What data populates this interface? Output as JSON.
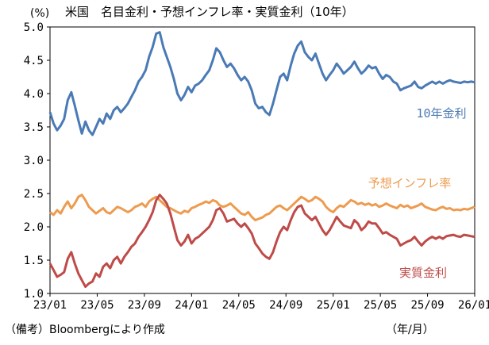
{
  "title": "米国　名目金利・予想インフレ率・実質金利（10年）",
  "unit_label": "(%)",
  "source_note": "（備考）Bloombergにより作成",
  "x_unit_label": "（年/月）",
  "chart_data": {
    "type": "line",
    "title": "米国　名目金利・予想インフレ率・実質金利（10年）",
    "ylabel": "(%)",
    "xlabel": "（年/月）",
    "ylim": [
      1.0,
      5.0
    ],
    "yticks": [
      "1.0",
      "1.5",
      "2.0",
      "2.5",
      "3.0",
      "3.5",
      "4.0",
      "4.5",
      "5.0"
    ],
    "xticks": [
      "23/01",
      "23/05",
      "23/09",
      "24/01",
      "24/05",
      "24/09",
      "25/01",
      "25/05",
      "25/09",
      "26/01"
    ],
    "x_range_months": [
      0,
      36
    ],
    "grid": false,
    "series": [
      {
        "name": "10年金利",
        "color": "#4a7ab5",
        "x": [
          0,
          0.3,
          0.6,
          0.9,
          1.2,
          1.5,
          1.8,
          2.1,
          2.4,
          2.7,
          3.0,
          3.3,
          3.6,
          3.9,
          4.2,
          4.5,
          4.8,
          5.1,
          5.4,
          5.7,
          6.0,
          6.3,
          6.6,
          6.9,
          7.2,
          7.5,
          7.8,
          8.1,
          8.4,
          8.7,
          9.0,
          9.3,
          9.6,
          9.9,
          10.2,
          10.5,
          10.8,
          11.1,
          11.4,
          11.7,
          12.0,
          12.3,
          12.6,
          12.9,
          13.2,
          13.5,
          13.8,
          14.1,
          14.4,
          14.7,
          15.0,
          15.3,
          15.6,
          15.9,
          16.2,
          16.5,
          16.8,
          17.1,
          17.4,
          17.7,
          18.0,
          18.3,
          18.6,
          18.9,
          19.2,
          19.5,
          19.8,
          20.1,
          20.4,
          20.7,
          21.0,
          21.3,
          21.6,
          21.9,
          22.2,
          22.5,
          22.8,
          23.1,
          23.4,
          23.7,
          24.0,
          24.3,
          24.6,
          24.9,
          25.2,
          25.5,
          25.8,
          26.1,
          26.4,
          26.7,
          27.0,
          27.3,
          27.6,
          27.9,
          28.2,
          28.5,
          28.8,
          29.1,
          29.4,
          29.7,
          30.0,
          30.3,
          30.6,
          30.9,
          31.2,
          31.5,
          31.8,
          32.1,
          32.4,
          32.7,
          33.0,
          33.3,
          33.6,
          33.9,
          34.2,
          34.5,
          34.8,
          35.1,
          35.4,
          35.7,
          36.0
        ],
        "values": [
          3.72,
          3.55,
          3.45,
          3.52,
          3.62,
          3.9,
          4.02,
          3.82,
          3.6,
          3.4,
          3.58,
          3.45,
          3.38,
          3.5,
          3.62,
          3.55,
          3.7,
          3.62,
          3.75,
          3.8,
          3.72,
          3.78,
          3.85,
          3.95,
          4.05,
          4.18,
          4.25,
          4.35,
          4.55,
          4.7,
          4.9,
          4.92,
          4.7,
          4.55,
          4.4,
          4.22,
          4.0,
          3.9,
          3.98,
          4.1,
          4.02,
          4.12,
          4.15,
          4.2,
          4.28,
          4.35,
          4.5,
          4.68,
          4.62,
          4.5,
          4.4,
          4.45,
          4.38,
          4.28,
          4.2,
          4.25,
          4.18,
          4.05,
          3.85,
          3.78,
          3.8,
          3.72,
          3.68,
          3.85,
          4.05,
          4.25,
          4.3,
          4.2,
          4.42,
          4.6,
          4.72,
          4.78,
          4.62,
          4.55,
          4.5,
          4.6,
          4.45,
          4.3,
          4.2,
          4.28,
          4.35,
          4.45,
          4.38,
          4.3,
          4.35,
          4.4,
          4.48,
          4.38,
          4.3,
          4.35,
          4.42,
          4.38,
          4.4,
          4.3,
          4.22,
          4.28,
          4.25,
          4.18,
          4.15,
          4.05,
          4.08,
          4.1,
          4.12,
          4.18,
          4.1,
          4.08,
          4.12,
          4.15,
          4.18,
          4.15,
          4.18,
          4.15,
          4.18,
          4.2,
          4.18,
          4.17,
          4.16,
          4.18,
          4.17,
          4.18,
          4.17
        ]
      },
      {
        "name": "予想インフレ率",
        "color": "#ed9b4f",
        "x": [
          0,
          0.3,
          0.6,
          0.9,
          1.2,
          1.5,
          1.8,
          2.1,
          2.4,
          2.7,
          3.0,
          3.3,
          3.6,
          3.9,
          4.2,
          4.5,
          4.8,
          5.1,
          5.4,
          5.7,
          6.0,
          6.3,
          6.6,
          6.9,
          7.2,
          7.5,
          7.8,
          8.1,
          8.4,
          8.7,
          9.0,
          9.3,
          9.6,
          9.9,
          10.2,
          10.5,
          10.8,
          11.1,
          11.4,
          11.7,
          12.0,
          12.3,
          12.6,
          12.9,
          13.2,
          13.5,
          13.8,
          14.1,
          14.4,
          14.7,
          15.0,
          15.3,
          15.6,
          15.9,
          16.2,
          16.5,
          16.8,
          17.1,
          17.4,
          17.7,
          18.0,
          18.3,
          18.6,
          18.9,
          19.2,
          19.5,
          19.8,
          20.1,
          20.4,
          20.7,
          21.0,
          21.3,
          21.6,
          21.9,
          22.2,
          22.5,
          22.8,
          23.1,
          23.4,
          23.7,
          24.0,
          24.3,
          24.6,
          24.9,
          25.2,
          25.5,
          25.8,
          26.1,
          26.4,
          26.7,
          27.0,
          27.3,
          27.6,
          27.9,
          28.2,
          28.5,
          28.8,
          29.1,
          29.4,
          29.7,
          30.0,
          30.3,
          30.6,
          30.9,
          31.2,
          31.5,
          31.8,
          32.1,
          32.4,
          32.7,
          33.0,
          33.3,
          33.6,
          33.9,
          34.2,
          34.5,
          34.8,
          35.1,
          35.4,
          35.7,
          36.0
        ],
        "values": [
          2.22,
          2.18,
          2.25,
          2.2,
          2.3,
          2.38,
          2.28,
          2.35,
          2.45,
          2.48,
          2.4,
          2.3,
          2.25,
          2.2,
          2.24,
          2.28,
          2.22,
          2.2,
          2.25,
          2.3,
          2.28,
          2.25,
          2.22,
          2.25,
          2.3,
          2.32,
          2.35,
          2.3,
          2.38,
          2.42,
          2.45,
          2.4,
          2.35,
          2.3,
          2.28,
          2.25,
          2.22,
          2.2,
          2.24,
          2.22,
          2.28,
          2.3,
          2.33,
          2.35,
          2.38,
          2.36,
          2.4,
          2.38,
          2.32,
          2.3,
          2.32,
          2.35,
          2.3,
          2.25,
          2.2,
          2.18,
          2.22,
          2.15,
          2.1,
          2.12,
          2.14,
          2.18,
          2.2,
          2.25,
          2.3,
          2.32,
          2.28,
          2.25,
          2.3,
          2.35,
          2.4,
          2.45,
          2.42,
          2.38,
          2.4,
          2.45,
          2.42,
          2.38,
          2.3,
          2.25,
          2.22,
          2.28,
          2.32,
          2.3,
          2.35,
          2.4,
          2.38,
          2.34,
          2.36,
          2.33,
          2.35,
          2.32,
          2.34,
          2.3,
          2.32,
          2.35,
          2.32,
          2.3,
          2.28,
          2.33,
          2.3,
          2.32,
          2.28,
          2.3,
          2.32,
          2.35,
          2.3,
          2.28,
          2.26,
          2.25,
          2.28,
          2.3,
          2.27,
          2.28,
          2.25,
          2.26,
          2.25,
          2.27,
          2.26,
          2.28,
          2.3
        ]
      },
      {
        "name": "実質金利",
        "color": "#be4b48",
        "x": [
          0,
          0.3,
          0.6,
          0.9,
          1.2,
          1.5,
          1.8,
          2.1,
          2.4,
          2.7,
          3.0,
          3.3,
          3.6,
          3.9,
          4.2,
          4.5,
          4.8,
          5.1,
          5.4,
          5.7,
          6.0,
          6.3,
          6.6,
          6.9,
          7.2,
          7.5,
          7.8,
          8.1,
          8.4,
          8.7,
          9.0,
          9.3,
          9.6,
          9.9,
          10.2,
          10.5,
          10.8,
          11.1,
          11.4,
          11.7,
          12.0,
          12.3,
          12.6,
          12.9,
          13.2,
          13.5,
          13.8,
          14.1,
          14.4,
          14.7,
          15.0,
          15.3,
          15.6,
          15.9,
          16.2,
          16.5,
          16.8,
          17.1,
          17.4,
          17.7,
          18.0,
          18.3,
          18.6,
          18.9,
          19.2,
          19.5,
          19.8,
          20.1,
          20.4,
          20.7,
          21.0,
          21.3,
          21.6,
          21.9,
          22.2,
          22.5,
          22.8,
          23.1,
          23.4,
          23.7,
          24.0,
          24.3,
          24.6,
          24.9,
          25.2,
          25.5,
          25.8,
          26.1,
          26.4,
          26.7,
          27.0,
          27.3,
          27.6,
          27.9,
          28.2,
          28.5,
          28.8,
          29.1,
          29.4,
          29.7,
          30.0,
          30.3,
          30.6,
          30.9,
          31.2,
          31.5,
          31.8,
          32.1,
          32.4,
          32.7,
          33.0,
          33.3,
          33.6,
          33.9,
          34.2,
          34.5,
          34.8,
          35.1,
          35.4,
          35.7,
          36.0
        ],
        "values": [
          1.45,
          1.35,
          1.25,
          1.28,
          1.32,
          1.52,
          1.62,
          1.45,
          1.3,
          1.2,
          1.1,
          1.15,
          1.18,
          1.3,
          1.25,
          1.4,
          1.45,
          1.38,
          1.5,
          1.55,
          1.45,
          1.55,
          1.62,
          1.7,
          1.75,
          1.85,
          1.92,
          2.0,
          2.1,
          2.22,
          2.4,
          2.48,
          2.42,
          2.35,
          2.2,
          2.0,
          1.8,
          1.72,
          1.78,
          1.88,
          1.75,
          1.82,
          1.85,
          1.9,
          1.95,
          2.0,
          2.1,
          2.25,
          2.28,
          2.2,
          2.08,
          2.1,
          2.12,
          2.05,
          2.0,
          2.05,
          1.98,
          1.9,
          1.75,
          1.68,
          1.6,
          1.55,
          1.52,
          1.62,
          1.78,
          1.92,
          2.0,
          1.95,
          2.1,
          2.22,
          2.3,
          2.32,
          2.2,
          2.15,
          2.1,
          2.15,
          2.05,
          1.95,
          1.88,
          1.95,
          2.05,
          2.15,
          2.08,
          2.02,
          2.0,
          1.98,
          2.1,
          2.05,
          1.95,
          2.0,
          2.08,
          2.05,
          2.05,
          1.98,
          1.9,
          1.92,
          1.88,
          1.85,
          1.82,
          1.72,
          1.75,
          1.78,
          1.8,
          1.85,
          1.78,
          1.72,
          1.78,
          1.82,
          1.85,
          1.82,
          1.85,
          1.82,
          1.86,
          1.87,
          1.88,
          1.86,
          1.85,
          1.88,
          1.87,
          1.86,
          1.85
        ]
      }
    ]
  }
}
